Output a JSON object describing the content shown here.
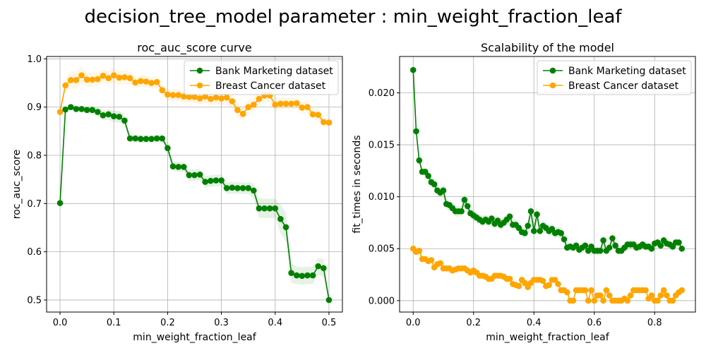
{
  "figure": {
    "suptitle": "decision_tree_model parameter : min_weight_fraction_leaf"
  },
  "colors": {
    "bank": "#008000",
    "breast": "#ffa500",
    "grid": "#b0b0b0",
    "axis": "#000000"
  },
  "chart_data": [
    {
      "type": "line",
      "title": "roc_auc_score curve",
      "xlabel": "min_weight_fraction_leaf",
      "ylabel": "roc_auc_score",
      "xlim": [
        -0.025,
        0.525
      ],
      "ylim": [
        0.475,
        1.005
      ],
      "xticks": [
        0.0,
        0.1,
        0.2,
        0.3,
        0.4,
        0.5
      ],
      "xtick_labels": [
        "0.0",
        "0.1",
        "0.2",
        "0.3",
        "0.4",
        "0.5"
      ],
      "yticks": [
        0.5,
        0.6,
        0.7,
        0.8,
        0.9,
        1.0
      ],
      "ytick_labels": [
        "0.5",
        "0.6",
        "0.7",
        "0.8",
        "0.9",
        "1.0"
      ],
      "grid": true,
      "legend": "top-right",
      "markers": true,
      "band": "shaded ± spread around each series",
      "x": [
        0.0,
        0.01,
        0.02,
        0.03,
        0.04,
        0.05,
        0.06,
        0.07,
        0.08,
        0.09,
        0.1,
        0.11,
        0.12,
        0.13,
        0.14,
        0.15,
        0.16,
        0.17,
        0.18,
        0.19,
        0.2,
        0.21,
        0.22,
        0.23,
        0.24,
        0.25,
        0.26,
        0.27,
        0.28,
        0.29,
        0.3,
        0.31,
        0.32,
        0.33,
        0.34,
        0.35,
        0.36,
        0.37,
        0.38,
        0.39,
        0.4,
        0.41,
        0.42,
        0.43,
        0.44,
        0.45,
        0.46,
        0.47,
        0.48,
        0.49,
        0.5
      ],
      "series": [
        {
          "name": "Bank Marketing dataset",
          "color": "#008000",
          "values": [
            0.701,
            0.895,
            0.9,
            0.896,
            0.896,
            0.894,
            0.894,
            0.89,
            0.883,
            0.885,
            0.881,
            0.88,
            0.872,
            0.835,
            0.835,
            0.834,
            0.834,
            0.834,
            0.835,
            0.835,
            0.815,
            0.777,
            0.776,
            0.776,
            0.759,
            0.759,
            0.76,
            0.745,
            0.747,
            0.748,
            0.748,
            0.732,
            0.733,
            0.732,
            0.732,
            0.732,
            0.727,
            0.69,
            0.69,
            0.69,
            0.69,
            0.668,
            0.651,
            0.556,
            0.551,
            0.55,
            0.551,
            0.551,
            0.57,
            0.566,
            0.5
          ],
          "band": [
            0.001,
            0.003,
            0.004,
            0.006,
            0.006,
            0.007,
            0.008,
            0.009,
            0.01,
            0.011,
            0.012,
            0.012,
            0.012,
            0.008,
            0.008,
            0.008,
            0.008,
            0.008,
            0.008,
            0.008,
            0.012,
            0.01,
            0.01,
            0.01,
            0.012,
            0.012,
            0.012,
            0.012,
            0.012,
            0.012,
            0.012,
            0.012,
            0.012,
            0.012,
            0.012,
            0.012,
            0.015,
            0.02,
            0.02,
            0.02,
            0.02,
            0.03,
            0.03,
            0.02,
            0.018,
            0.018,
            0.018,
            0.018,
            0.018,
            0.018,
            0.004
          ]
        },
        {
          "name": "Breast Cancer dataset",
          "color": "#ffa500",
          "values": [
            0.89,
            0.945,
            0.956,
            0.956,
            0.966,
            0.957,
            0.957,
            0.958,
            0.965,
            0.96,
            0.966,
            0.961,
            0.962,
            0.96,
            0.951,
            0.954,
            0.953,
            0.95,
            0.952,
            0.935,
            0.926,
            0.925,
            0.925,
            0.922,
            0.921,
            0.921,
            0.918,
            0.922,
            0.917,
            0.92,
            0.918,
            0.92,
            0.912,
            0.894,
            0.886,
            0.9,
            0.905,
            0.917,
            0.924,
            0.924,
            0.905,
            0.907,
            0.907,
            0.907,
            0.908,
            0.899,
            0.9,
            0.885,
            0.884,
            0.869,
            0.868
          ],
          "band": [
            0.005,
            0.012,
            0.018,
            0.018,
            0.018,
            0.015,
            0.015,
            0.014,
            0.014,
            0.014,
            0.014,
            0.014,
            0.014,
            0.014,
            0.012,
            0.012,
            0.012,
            0.012,
            0.012,
            0.012,
            0.012,
            0.012,
            0.012,
            0.012,
            0.012,
            0.012,
            0.014,
            0.014,
            0.014,
            0.014,
            0.014,
            0.014,
            0.014,
            0.014,
            0.014,
            0.014,
            0.014,
            0.014,
            0.014,
            0.014,
            0.014,
            0.012,
            0.012,
            0.012,
            0.012,
            0.012,
            0.012,
            0.012,
            0.012,
            0.01,
            0.008
          ]
        }
      ]
    },
    {
      "type": "line",
      "title": "Scalability of the model",
      "xlabel": "min_weight_fraction_leaf",
      "ylabel": "fit_times in seconds",
      "xlim": [
        -0.045,
        0.935
      ],
      "ylim": [
        -0.0011,
        0.0235
      ],
      "xticks": [
        0.0,
        0.2,
        0.4,
        0.6,
        0.8
      ],
      "xtick_labels": [
        "0.0",
        "0.2",
        "0.4",
        "0.6",
        "0.8"
      ],
      "yticks": [
        0.0,
        0.005,
        0.01,
        0.015,
        0.02
      ],
      "ytick_labels": [
        "0.000",
        "0.005",
        "0.010",
        "0.015",
        "0.020"
      ],
      "grid": true,
      "legend": "top-right",
      "markers": true,
      "band": "shaded ± spread around each series",
      "x": [
        0.0,
        0.01,
        0.02,
        0.03,
        0.04,
        0.05,
        0.06,
        0.07,
        0.08,
        0.09,
        0.1,
        0.11,
        0.12,
        0.13,
        0.14,
        0.15,
        0.16,
        0.17,
        0.18,
        0.19,
        0.2,
        0.21,
        0.22,
        0.23,
        0.24,
        0.25,
        0.26,
        0.27,
        0.28,
        0.29,
        0.3,
        0.31,
        0.32,
        0.33,
        0.34,
        0.35,
        0.36,
        0.37,
        0.38,
        0.39,
        0.4,
        0.41,
        0.42,
        0.43,
        0.44,
        0.45,
        0.46,
        0.47,
        0.48,
        0.49,
        0.5,
        0.51,
        0.52,
        0.53,
        0.54,
        0.55,
        0.56,
        0.57,
        0.58,
        0.59,
        0.6,
        0.61,
        0.62,
        0.63,
        0.64,
        0.65,
        0.66,
        0.67,
        0.68,
        0.69,
        0.7,
        0.71,
        0.72,
        0.73,
        0.74,
        0.75,
        0.76,
        0.77,
        0.78,
        0.79,
        0.8,
        0.81,
        0.82,
        0.83,
        0.84,
        0.85,
        0.86,
        0.87,
        0.88,
        0.89
      ],
      "series": [
        {
          "name": "Bank Marketing dataset",
          "color": "#008000",
          "values": [
            0.0222,
            0.0163,
            0.0135,
            0.0124,
            0.0124,
            0.012,
            0.0114,
            0.0112,
            0.0106,
            0.0104,
            0.0106,
            0.0093,
            0.0092,
            0.0089,
            0.0086,
            0.0086,
            0.0086,
            0.0097,
            0.0091,
            0.0084,
            0.0082,
            0.008,
            0.0078,
            0.0076,
            0.0078,
            0.0076,
            0.0079,
            0.0074,
            0.0077,
            0.0073,
            0.0075,
            0.0078,
            0.0081,
            0.0073,
            0.0073,
            0.007,
            0.0066,
            0.0065,
            0.0072,
            0.0086,
            0.0067,
            0.0083,
            0.0067,
            0.0072,
            0.007,
            0.0067,
            0.0069,
            0.0065,
            0.0066,
            0.0065,
            0.0059,
            0.0051,
            0.0052,
            0.0051,
            0.0053,
            0.0049,
            0.0051,
            0.0053,
            0.0048,
            0.0052,
            0.0048,
            0.0048,
            0.0048,
            0.0058,
            0.0048,
            0.0051,
            0.006,
            0.0053,
            0.0048,
            0.0048,
            0.0051,
            0.0054,
            0.0054,
            0.0054,
            0.0051,
            0.0052,
            0.0054,
            0.0052,
            0.0052,
            0.005,
            0.0055,
            0.0056,
            0.0053,
            0.0058,
            0.0055,
            0.0054,
            0.0052,
            0.0056,
            0.0056,
            0.005
          ],
          "band": [
            0.0001,
            0.0002,
            0.0003,
            0.0003,
            0.0004,
            0.0005,
            0.0005,
            0.0005,
            0.0005,
            0.0005,
            0.0006,
            0.0005,
            0.0005,
            0.0005,
            0.0005,
            0.0005,
            0.0005,
            0.0006,
            0.0006,
            0.0005,
            0.0005,
            0.0005,
            0.0005,
            0.0005,
            0.0005,
            0.0005,
            0.0005,
            0.0005,
            0.0005,
            0.0005,
            0.0005,
            0.0005,
            0.0005,
            0.0005,
            0.0005,
            0.0005,
            0.0005,
            0.0005,
            0.0006,
            0.001,
            0.0006,
            0.0008,
            0.0006,
            0.0005,
            0.0005,
            0.0005,
            0.0005,
            0.0005,
            0.0005,
            0.0005,
            0.0005,
            0.0004,
            0.0004,
            0.0004,
            0.0004,
            0.0004,
            0.0004,
            0.0004,
            0.0004,
            0.0004,
            0.0004,
            0.0004,
            0.0004,
            0.0006,
            0.0004,
            0.0004,
            0.0006,
            0.0004,
            0.0004,
            0.0004,
            0.0004,
            0.0004,
            0.0004,
            0.0004,
            0.0004,
            0.0004,
            0.0004,
            0.0004,
            0.0004,
            0.0004,
            0.0004,
            0.0004,
            0.0004,
            0.0005,
            0.0004,
            0.0004,
            0.0004,
            0.0004,
            0.0004,
            0.0004
          ]
        },
        {
          "name": "Breast Cancer dataset",
          "color": "#ffa500",
          "values": [
            0.005,
            0.0047,
            0.0048,
            0.004,
            0.004,
            0.0038,
            0.0039,
            0.0032,
            0.0035,
            0.0036,
            0.0031,
            0.0031,
            0.0031,
            0.0029,
            0.003,
            0.0031,
            0.0031,
            0.0031,
            0.0029,
            0.0027,
            0.0029,
            0.0027,
            0.0024,
            0.0024,
            0.0023,
            0.0021,
            0.0021,
            0.0024,
            0.0024,
            0.0024,
            0.0023,
            0.0021,
            0.0021,
            0.0016,
            0.0015,
            0.0014,
            0.002,
            0.0017,
            0.0013,
            0.0017,
            0.002,
            0.002,
            0.002,
            0.0019,
            0.0014,
            0.0015,
            0.002,
            0.002,
            0.0016,
            0.001,
            0.001,
            0.0008,
            0.0,
            0.0,
            0.001,
            0.001,
            0.001,
            0.001,
            0.0,
            0.001,
            0.0,
            0.0005,
            0.0005,
            0.0,
            0.001,
            0.0005,
            0.0,
            0.0,
            0.0,
            0.0,
            0.0002,
            0.0,
            0.0005,
            0.001,
            0.001,
            0.001,
            0.001,
            0.001,
            0.0002,
            0.0005,
            0.0,
            0.0,
            0.0005,
            0.001,
            0.0005,
            0.0,
            0.0,
            0.0005,
            0.0008,
            0.001
          ],
          "band": [
            0.0001,
            0.0002,
            0.0002,
            0.0002,
            0.0002,
            0.0002,
            0.0002,
            0.0002,
            0.0002,
            0.0002,
            0.0002,
            0.0002,
            0.0002,
            0.0002,
            0.0002,
            0.0002,
            0.0002,
            0.0002,
            0.0002,
            0.0002,
            0.0002,
            0.0002,
            0.0002,
            0.0002,
            0.0002,
            0.0002,
            0.0002,
            0.0002,
            0.0002,
            0.0002,
            0.0002,
            0.0002,
            0.0002,
            0.0002,
            0.0002,
            0.0002,
            0.0002,
            0.0002,
            0.0002,
            0.0002,
            0.0002,
            0.0002,
            0.0002,
            0.0002,
            0.0002,
            0.0002,
            0.0002,
            0.0002,
            0.0002,
            0.0002,
            0.0002,
            0.0002,
            0.0001,
            0.0001,
            0.0002,
            0.0002,
            0.0002,
            0.0002,
            0.0001,
            0.0002,
            0.0001,
            0.0002,
            0.0002,
            0.0001,
            0.0002,
            0.0002,
            0.0001,
            0.0001,
            0.0001,
            0.0001,
            0.0001,
            0.0001,
            0.0002,
            0.0002,
            0.0002,
            0.0002,
            0.0002,
            0.0002,
            0.0001,
            0.0002,
            0.0001,
            0.0001,
            0.0002,
            0.0002,
            0.0002,
            0.0001,
            0.0001,
            0.0002,
            0.0002,
            0.0002
          ]
        }
      ]
    }
  ]
}
